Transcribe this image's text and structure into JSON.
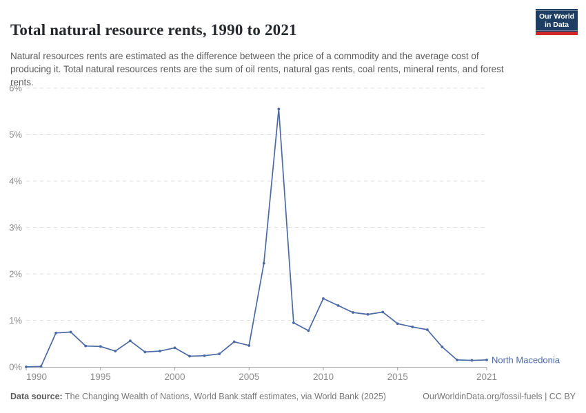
{
  "header": {
    "title": "Total natural resource rents, 1990 to 2021",
    "subtitle": "Natural resources rents are estimated as the difference between the price of a commodity and the average cost of producing it. Total natural resources rents are the sum of oil rents, natural gas rents, coal rents, mineral rents, and forest rents.",
    "logo": {
      "line1": "Our World",
      "line2": "in Data"
    }
  },
  "footer": {
    "source_label": "Data source:",
    "source_text": " The Changing Wealth of Nations, World Bank staff estimates, via World Bank (2025)",
    "link_text": "OurWorldinData.org/fossil-fuels | CC BY"
  },
  "colors": {
    "series_blue": "#4a69a5",
    "gridline": "#e2e2e2",
    "axis": "#a3a3a3",
    "tick_label": "#8b8b8b",
    "logo_navy": "#1d3d63",
    "logo_red": "#d22a27"
  },
  "chart_data": {
    "type": "line",
    "title": "Total natural resource rents, 1990 to 2021",
    "xlabel": "",
    "ylabel": "",
    "ylim": [
      0,
      6
    ],
    "yticks": [
      0,
      1,
      2,
      3,
      4,
      5,
      6
    ],
    "ytick_suffix": "%",
    "xticks": [
      1990,
      1995,
      2000,
      2005,
      2010,
      2015,
      2021
    ],
    "grid": "horizontal-dashed",
    "legend_position": "end-of-line",
    "x": [
      1990,
      1991,
      1992,
      1993,
      1994,
      1995,
      1996,
      1997,
      1998,
      1999,
      2000,
      2001,
      2002,
      2003,
      2004,
      2005,
      2006,
      2007,
      2008,
      2009,
      2010,
      2011,
      2012,
      2013,
      2014,
      2015,
      2016,
      2017,
      2018,
      2019,
      2020,
      2021
    ],
    "series": [
      {
        "name": "North Macedonia",
        "values": [
          0.0,
          0.01,
          0.73,
          0.75,
          0.45,
          0.44,
          0.34,
          0.56,
          0.32,
          0.34,
          0.41,
          0.23,
          0.24,
          0.28,
          0.54,
          0.46,
          2.23,
          5.55,
          0.95,
          0.78,
          1.47,
          1.32,
          1.17,
          1.13,
          1.18,
          0.93,
          0.86,
          0.8,
          0.43,
          0.15,
          0.14,
          0.15
        ]
      }
    ]
  }
}
